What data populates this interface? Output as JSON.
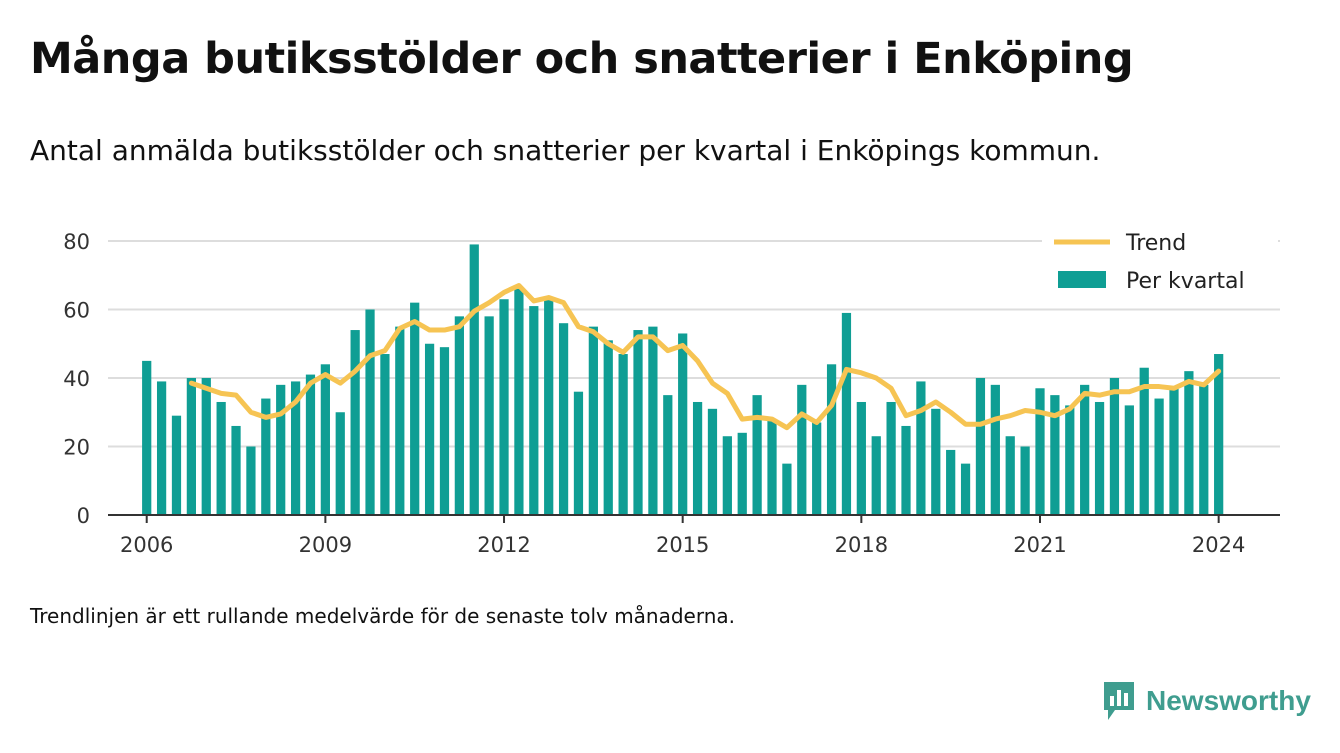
{
  "title": "Många butiksstölder och snatterier i Enköping",
  "subtitle": "Antal anmälda butiksstölder och snatterier per kvartal i Enköpings kommun.",
  "note": "Trendlinjen är ett rullande medelvärde för de senaste tolv månaderna.",
  "brand": {
    "name": "Newsworthy",
    "icon": "newsworthy-logo-icon",
    "color": "#3f9d8f"
  },
  "colors": {
    "bar": "#0f9e94",
    "trend": "#f6c453",
    "grid": "#dddddd",
    "axis": "#333333"
  },
  "chart_data": {
    "type": "bar",
    "x_range": [
      2005.35,
      2025.03
    ],
    "ylim": [
      0,
      80
    ],
    "yticks": [
      0,
      20,
      40,
      60,
      80
    ],
    "xticks": [
      2006,
      2009,
      2012,
      2015,
      2018,
      2021,
      2024
    ],
    "grid": true,
    "legend": {
      "position": "top-right",
      "labels": [
        "Trend",
        "Per kvartal"
      ]
    },
    "series": [
      {
        "name": "Per kvartal",
        "type": "bar",
        "start_year": 2006,
        "step": 0.25,
        "values": [
          45,
          39,
          29,
          40,
          40,
          33,
          26,
          20,
          34,
          38,
          39,
          41,
          44,
          30,
          54,
          60,
          47,
          55,
          62,
          50,
          49,
          58,
          79,
          58,
          63,
          66,
          61,
          63,
          56,
          36,
          55,
          51,
          47,
          54,
          55,
          35,
          53,
          33,
          31,
          23,
          24,
          35,
          28,
          15,
          38,
          27,
          44,
          59,
          33,
          23,
          33,
          26,
          39,
          31,
          19,
          15,
          40,
          38,
          23,
          20,
          37,
          35,
          32,
          38,
          33,
          40,
          32,
          43,
          34,
          37,
          42,
          38,
          47
        ]
      },
      {
        "name": "Trend",
        "type": "line",
        "start_year": 2006.75,
        "step": 0.25,
        "values": [
          38.5,
          37,
          35.5,
          35,
          30,
          28.5,
          29.5,
          33,
          38.5,
          41,
          38.5,
          42,
          46.5,
          48,
          54.5,
          56.5,
          54,
          54,
          55,
          59.5,
          62,
          65,
          67,
          62.5,
          63.5,
          62,
          55,
          53.5,
          50,
          47.5,
          52,
          52,
          48,
          49.5,
          45,
          38.5,
          35.5,
          28,
          28.5,
          28,
          25.5,
          29.5,
          27,
          32,
          42.5,
          41.5,
          40,
          37,
          29,
          30.5,
          33,
          30,
          26.5,
          26.5,
          28,
          29,
          30.5,
          30,
          29,
          31,
          35.5,
          35,
          36,
          36,
          37.5,
          37.5,
          37,
          39,
          38,
          42
        ]
      }
    ]
  }
}
